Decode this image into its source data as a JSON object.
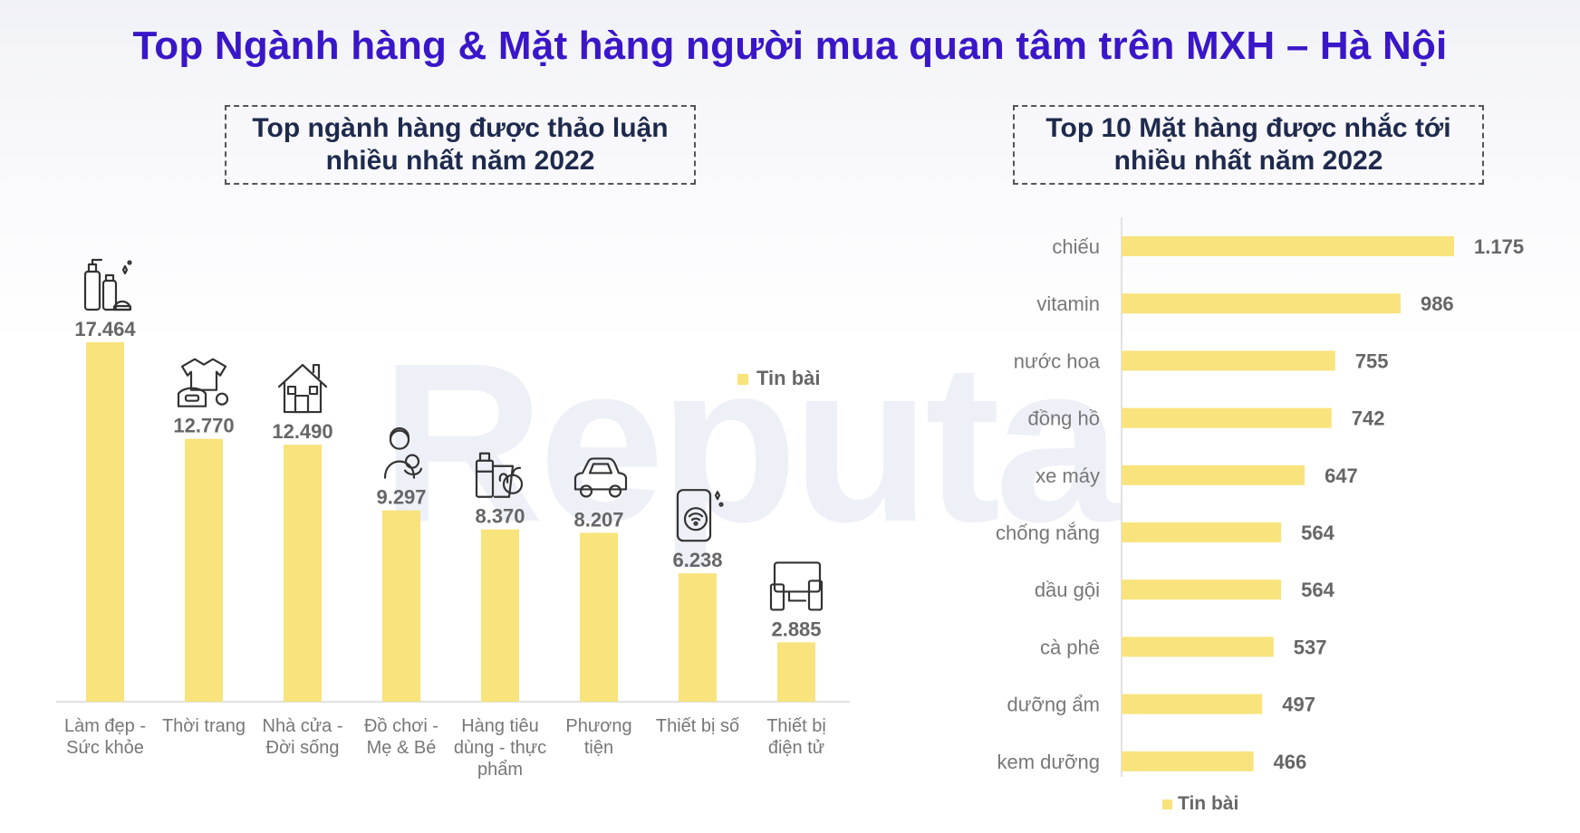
{
  "title": "Top Ngành hàng & Mặt hàng người mua quan tâm trên MXH – Hà Nội",
  "watermark": "Reputa",
  "left_box": {
    "line1": "Top ngành hàng được thảo luận",
    "line2": "nhiều nhất năm 2022"
  },
  "right_box": {
    "line1": "Top 10 Mặt hàng được nhắc tới",
    "line2": "nhiều nhất năm 2022"
  },
  "colors": {
    "bar": "#f8e37c",
    "title": "#3a16c9",
    "box_text": "#1e2a4d"
  },
  "chart_data": [
    {
      "type": "bar",
      "orientation": "vertical",
      "categories": [
        [
          "Làm đẹp -",
          "Sức khỏe"
        ],
        [
          "Thời trang"
        ],
        [
          "Nhà cửa -",
          "Đời sống"
        ],
        [
          "Đồ chơi -",
          "Mẹ & Bé"
        ],
        [
          "Hàng tiêu",
          "dùng - thực",
          "phẩm"
        ],
        [
          "Phương",
          "tiện"
        ],
        [
          "Thiết bị số"
        ],
        [
          "Thiết bị",
          "điện tử"
        ]
      ],
      "icons": [
        "cosmetics-icon",
        "clothing-icon",
        "house-icon",
        "mother-baby-icon",
        "groceries-icon",
        "car-icon",
        "smartphone-icon",
        "electronics-icon"
      ],
      "series": [
        {
          "name": "Tin bài",
          "values": [
            17464,
            12770,
            12490,
            9297,
            8370,
            8207,
            6238,
            2885
          ],
          "value_labels": [
            "17.464",
            "12.770",
            "12.490",
            "9.297",
            "8.370",
            "8.207",
            "6.238",
            "2.885"
          ]
        }
      ],
      "ylim": [
        0,
        17464
      ],
      "legend": {
        "label": "Tin bài",
        "position": "right"
      },
      "grid": false
    },
    {
      "type": "bar",
      "orientation": "horizontal",
      "categories": [
        "chiếu",
        "vitamin",
        "nước hoa",
        "đồng hồ",
        "xe máy",
        "chống nắng",
        "dầu gội",
        "cà phê",
        "dưỡng ẩm",
        "kem dưỡng"
      ],
      "series": [
        {
          "name": "Tin bài",
          "values": [
            1175,
            986,
            755,
            742,
            647,
            564,
            564,
            537,
            497,
            466
          ],
          "value_labels": [
            "1.175",
            "986",
            "755",
            "742",
            "647",
            "564",
            "564",
            "537",
            "497",
            "466"
          ]
        }
      ],
      "xlim": [
        0,
        1175
      ],
      "legend": {
        "label": "Tin bài",
        "position": "bottom"
      },
      "grid": false
    }
  ]
}
